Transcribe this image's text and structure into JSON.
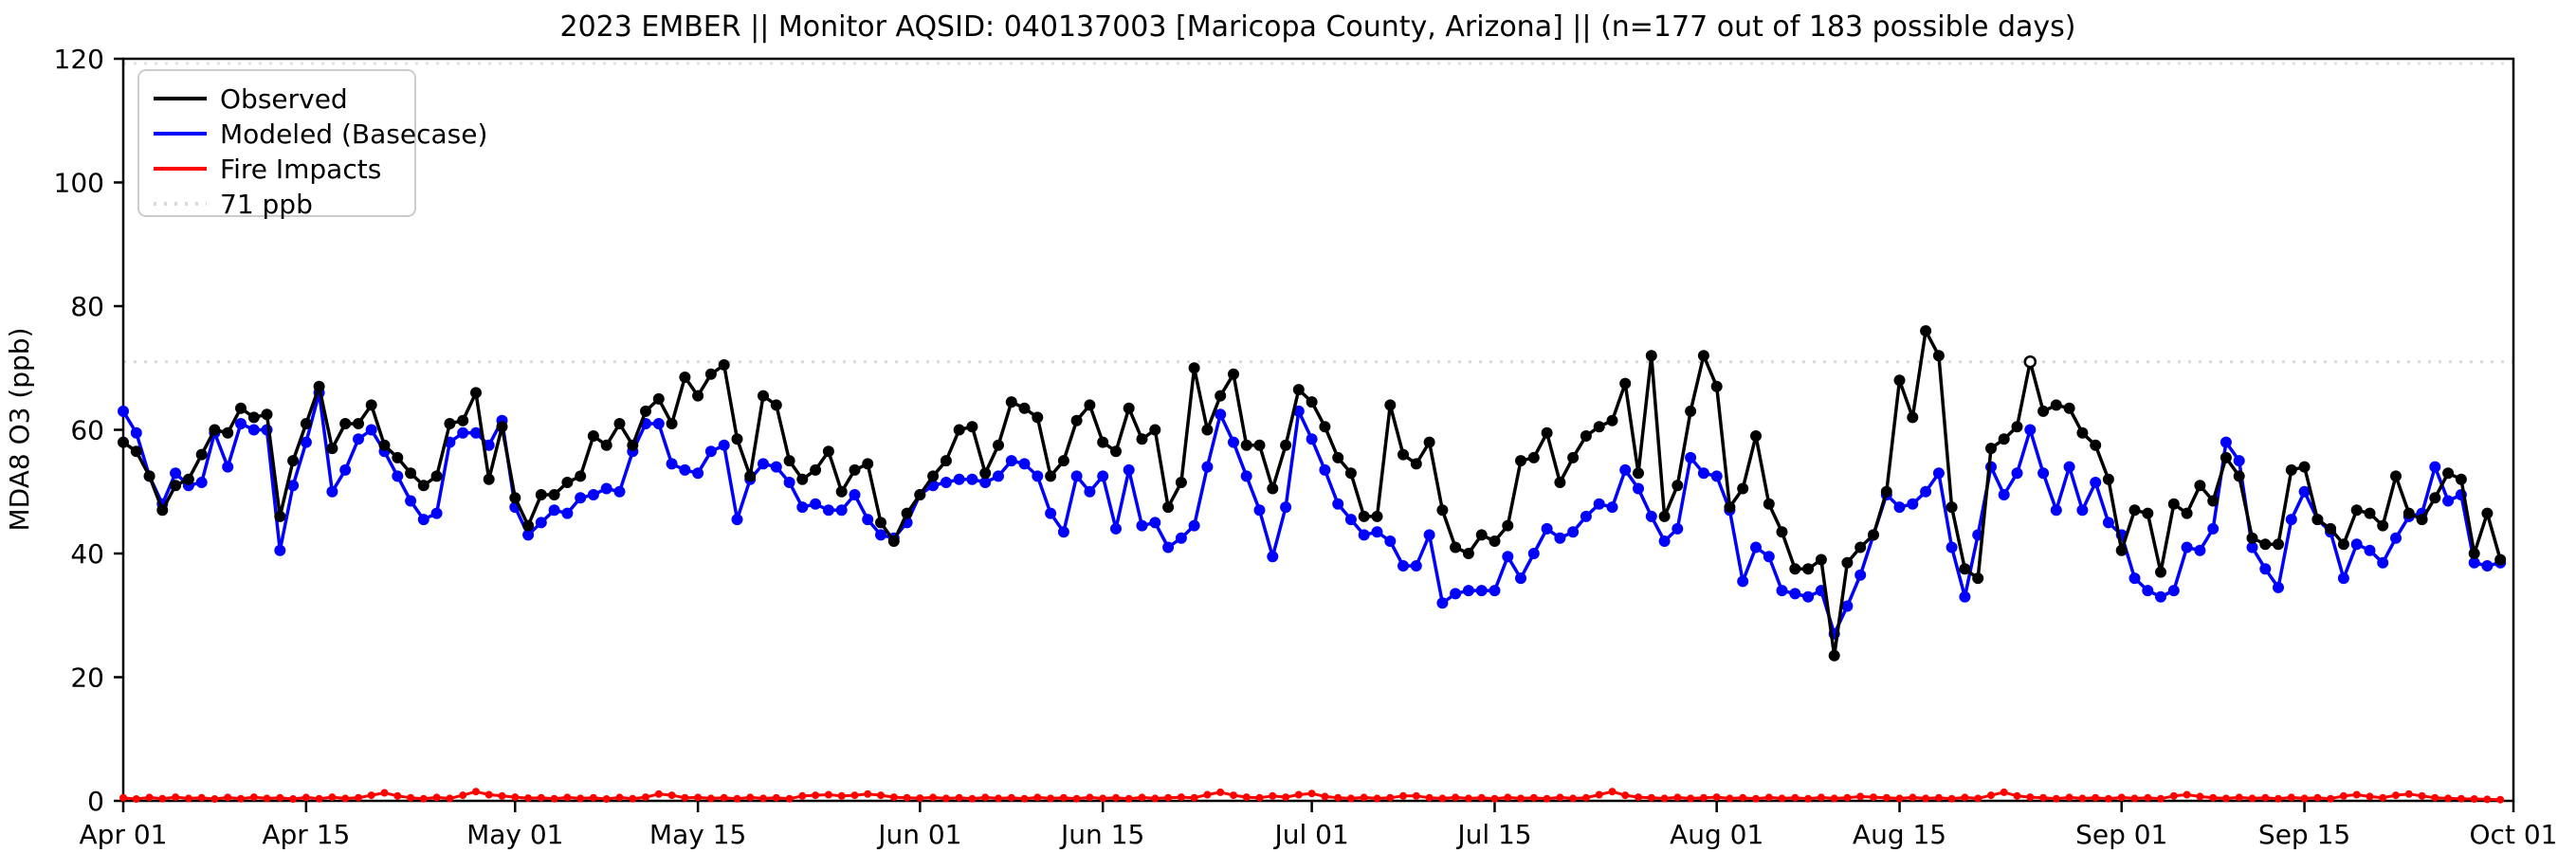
{
  "figure": {
    "title": "2023 EMBER || Monitor AQSID: 040137003 [Maricopa County, Arizona] || (n=177 out of 183 possible days)",
    "ylabel": "MDA8 O3 (ppb)"
  },
  "chart_data": {
    "type": "line",
    "title": "2023 EMBER || Monitor AQSID: 040137003 [Maricopa County, Arizona] || (n=177 out of 183 possible days)",
    "xlabel": "",
    "ylabel": "MDA8 O3 (ppb)",
    "ylim": [
      0,
      120
    ],
    "yticks": [
      0,
      20,
      40,
      60,
      80,
      100,
      120
    ],
    "grid": false,
    "legend_position": "upper-left",
    "threshold": {
      "label": "71 ppb",
      "value": 71,
      "color": "#d9d9d9",
      "style": "dotted"
    },
    "x_months": [
      {
        "name": "Apr",
        "days": 30
      },
      {
        "name": "May",
        "days": 31
      },
      {
        "name": "Jun",
        "days": 30
      },
      {
        "name": "Jul",
        "days": 31
      },
      {
        "name": "Aug",
        "days": 31
      },
      {
        "name": "Sep",
        "days": 30
      }
    ],
    "xticks": [
      {
        "label": "Apr 01",
        "day": 0
      },
      {
        "label": "Apr 15",
        "day": 14
      },
      {
        "label": "May 01",
        "day": 30
      },
      {
        "label": "May 15",
        "day": 44
      },
      {
        "label": "Jun 01",
        "day": 61
      },
      {
        "label": "Jun 15",
        "day": 75
      },
      {
        "label": "Jul 01",
        "day": 91
      },
      {
        "label": "Jul 15",
        "day": 105
      },
      {
        "label": "Aug 01",
        "day": 122
      },
      {
        "label": "Aug 15",
        "day": 136
      },
      {
        "label": "Sep 01",
        "day": 153
      },
      {
        "label": "Sep 15",
        "day": 167
      },
      {
        "label": "Oct 01",
        "day": 183
      }
    ],
    "legend": [
      {
        "label": "Observed",
        "color": "#000000",
        "style": "solid"
      },
      {
        "label": "Modeled (Basecase)",
        "color": "#0000ff",
        "style": "solid"
      },
      {
        "label": "Fire Impacts",
        "color": "#ff0000",
        "style": "solid"
      },
      {
        "label": "71 ppb",
        "color": "#d9d9d9",
        "style": "dotted"
      }
    ],
    "observed_open_marker_day_index": 146,
    "series": [
      {
        "name": "Observed",
        "color": "#000000",
        "marker_radius": 5.5,
        "line_width": 3.5,
        "values": [
          58,
          56.5,
          52.5,
          47,
          51,
          52,
          56,
          60,
          59.5,
          63.5,
          62,
          62.5,
          46,
          55,
          61,
          67,
          57,
          61,
          61,
          64,
          57.5,
          55.5,
          53,
          51,
          52.5,
          61,
          61.5,
          66,
          52,
          60.5,
          49,
          44.5,
          49.5,
          49.5,
          51.5,
          52.5,
          59,
          57.5,
          61,
          57.5,
          63,
          65,
          61,
          68.5,
          65.5,
          69,
          70.5,
          58.5,
          52.5,
          65.5,
          64,
          55,
          52,
          53.5,
          56.5,
          50,
          53.5,
          54.5,
          45,
          42,
          46.5,
          49.5,
          52.5,
          55,
          60,
          60.5,
          53,
          57.5,
          64.5,
          63.5,
          62,
          52.5,
          55,
          61.5,
          64,
          58,
          56.5,
          63.5,
          58.5,
          60,
          47.5,
          51.5,
          70,
          60,
          65.5,
          69,
          57.5,
          57.5,
          50.5,
          57.5,
          66.5,
          64.5,
          60.5,
          55.5,
          53,
          46,
          46,
          64,
          56,
          54.5,
          58,
          47,
          41,
          40,
          43,
          42,
          44.5,
          55,
          55.5,
          59.5,
          51.5,
          55.5,
          59,
          60.5,
          61.5,
          67.5,
          53,
          72,
          46,
          51,
          63,
          72,
          67,
          47.5,
          50.5,
          59,
          48,
          43.5,
          37.5,
          37.5,
          39,
          23.5,
          38.5,
          41,
          43,
          50,
          68,
          62,
          76,
          72,
          47.5,
          37.5,
          36,
          57,
          58.5,
          60.5,
          71,
          63,
          64,
          63.5,
          59.5,
          57.5,
          52,
          40.5,
          47,
          46.5,
          37,
          48,
          46.5,
          51,
          48.5,
          55.5,
          52.5,
          42.5,
          41.5,
          41.5,
          53.5,
          54,
          45.5,
          44,
          41.5,
          47,
          46.5,
          44.5,
          52.5,
          46.5,
          45.5,
          49,
          53,
          52,
          40,
          46.5,
          39
        ]
      },
      {
        "name": "Modeled (Basecase)",
        "color": "#0000ff",
        "marker_radius": 5.5,
        "line_width": 3.5,
        "values": [
          63,
          59.5,
          52.5,
          48,
          53,
          51,
          51.5,
          59.5,
          54,
          61,
          60,
          60,
          40.5,
          51,
          58,
          66,
          50,
          53.5,
          58.5,
          60,
          56.5,
          52.5,
          48.5,
          45.5,
          46.5,
          58,
          59.5,
          59.5,
          57.5,
          61.5,
          47.5,
          43,
          45,
          47,
          46.5,
          49,
          49.5,
          50.5,
          50,
          56.5,
          61,
          61,
          54.5,
          53.5,
          53,
          56.5,
          57.5,
          45.5,
          52,
          54.5,
          54,
          51.5,
          47.5,
          48,
          47,
          47,
          49.5,
          45.5,
          43,
          42.5,
          45,
          49.5,
          51,
          51.5,
          52,
          52,
          51.5,
          52.5,
          55,
          54.5,
          52.5,
          46.5,
          43.5,
          52.5,
          50,
          52.5,
          44,
          53.5,
          44.5,
          45,
          41,
          42.5,
          44.5,
          54,
          62.5,
          58,
          52.5,
          47,
          39.5,
          47.5,
          63,
          58.5,
          53.5,
          48,
          45.5,
          43,
          43.5,
          42,
          38,
          38,
          43,
          32,
          33.5,
          34,
          34,
          34,
          39.5,
          36,
          40,
          44,
          42.5,
          43.5,
          46,
          48,
          47.5,
          53.5,
          50.5,
          46,
          42,
          44,
          55.5,
          53,
          52.5,
          47,
          35.5,
          41,
          39.5,
          34,
          33.5,
          33,
          34,
          27,
          31.5,
          36.5,
          43,
          49.5,
          47.5,
          48,
          50,
          53,
          41,
          33,
          43,
          54,
          49.5,
          53,
          60,
          53,
          47,
          54,
          47,
          51.5,
          45,
          43,
          36,
          34,
          33,
          34,
          41,
          40.5,
          44,
          58,
          55,
          41,
          37.5,
          34.5,
          45.5,
          50,
          45.5,
          43.5,
          36,
          41.5,
          40.5,
          38.5,
          42.5,
          46,
          46.5,
          54,
          48.5,
          49.5,
          38.5,
          38,
          38.5
        ]
      },
      {
        "name": "Fire Impacts",
        "color": "#ff0000",
        "marker_radius": 3.5,
        "line_width": 3,
        "values": [
          0.5,
          0.3,
          0.55,
          0.35,
          0.6,
          0.4,
          0.5,
          0.3,
          0.55,
          0.35,
          0.6,
          0.4,
          0.5,
          0.3,
          0.55,
          0.35,
          0.6,
          0.4,
          0.5,
          0.9,
          1.3,
          0.8,
          0.5,
          0.35,
          0.55,
          0.4,
          0.9,
          1.5,
          1.0,
          0.8,
          0.6,
          0.45,
          0.5,
          0.35,
          0.55,
          0.4,
          0.5,
          0.3,
          0.55,
          0.35,
          0.6,
          1.1,
          0.9,
          0.5,
          0.55,
          0.4,
          0.5,
          0.35,
          0.55,
          0.4,
          0.5,
          0.35,
          0.8,
          0.9,
          1.0,
          0.8,
          0.9,
          1.1,
          0.9,
          0.6,
          0.5,
          0.45,
          0.55,
          0.4,
          0.5,
          0.35,
          0.55,
          0.4,
          0.5,
          0.35,
          0.55,
          0.4,
          0.5,
          0.35,
          0.55,
          0.4,
          0.5,
          0.35,
          0.55,
          0.4,
          0.5,
          0.6,
          0.5,
          1.0,
          1.4,
          0.9,
          0.6,
          0.5,
          0.8,
          0.6,
          1.0,
          1.2,
          0.7,
          0.5,
          0.4,
          0.55,
          0.4,
          0.5,
          0.8,
          0.8,
          0.5,
          0.4,
          0.55,
          0.4,
          0.5,
          0.35,
          0.55,
          0.4,
          0.5,
          0.35,
          0.55,
          0.4,
          0.5,
          1.0,
          1.5,
          0.9,
          0.6,
          0.5,
          0.4,
          0.55,
          0.4,
          0.5,
          0.6,
          0.4,
          0.5,
          0.35,
          0.55,
          0.4,
          0.5,
          0.35,
          0.55,
          0.4,
          0.5,
          0.7,
          0.6,
          0.5,
          0.4,
          0.55,
          0.4,
          0.5,
          0.35,
          0.55,
          0.4,
          0.9,
          1.4,
          0.8,
          0.6,
          0.5,
          0.35,
          0.55,
          0.4,
          0.5,
          0.35,
          0.55,
          0.4,
          0.5,
          0.35,
          0.8,
          1.0,
          0.7,
          0.5,
          0.4,
          0.55,
          0.4,
          0.5,
          0.35,
          0.55,
          0.4,
          0.5,
          0.35,
          0.8,
          1.0,
          0.7,
          0.5,
          0.9,
          1.1,
          0.8,
          0.5,
          0.4,
          0.35,
          0.3,
          0.25,
          0.2
        ]
      }
    ]
  }
}
